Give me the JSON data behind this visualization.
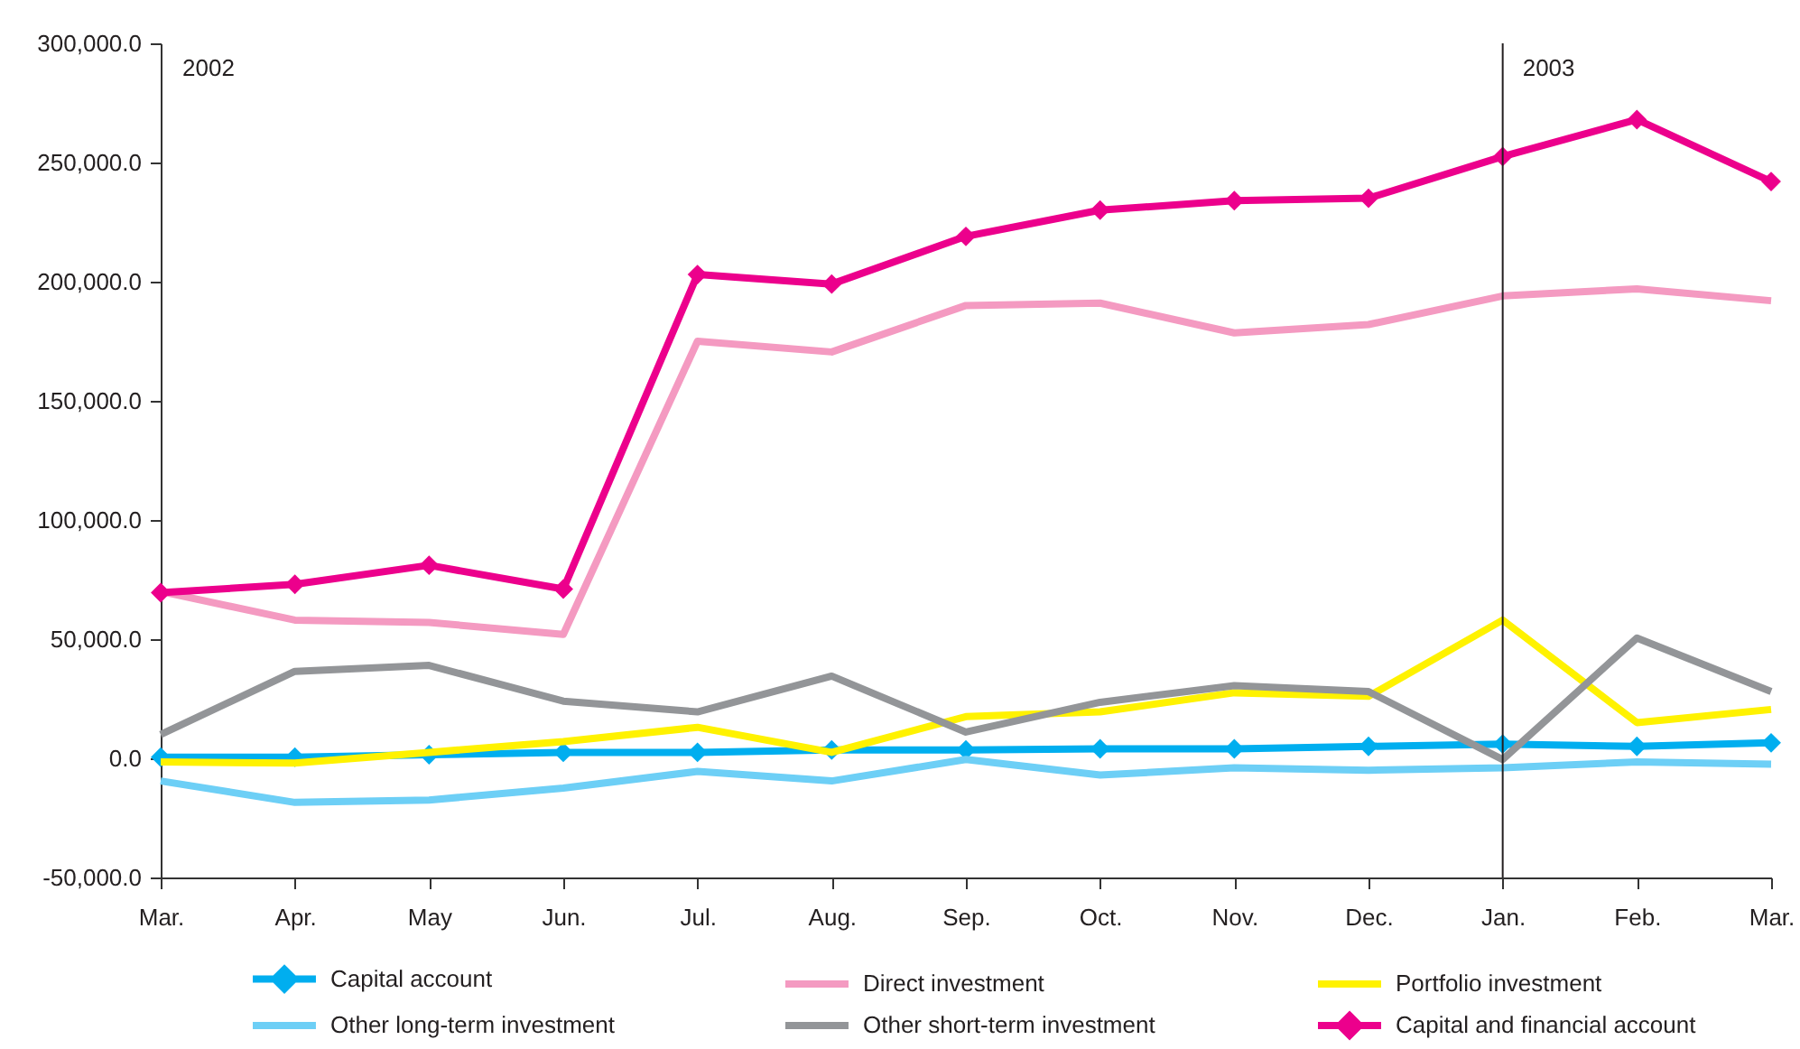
{
  "chart_data": {
    "type": "line",
    "categories": [
      "Mar.",
      "Apr.",
      "May",
      "Jun.",
      "Jul.",
      "Aug.",
      "Sep.",
      "Oct.",
      "Nov.",
      "Dec.",
      "Jan.",
      "Feb.",
      "Mar."
    ],
    "ylim": [
      -50000,
      300000
    ],
    "yticks": [
      {
        "value": -50000,
        "label": "-50,000.0"
      },
      {
        "value": 0,
        "label": "0.0"
      },
      {
        "value": 50000,
        "label": "50,000.0"
      },
      {
        "value": 100000,
        "label": "100,000.0"
      },
      {
        "value": 150000,
        "label": "150,000.0"
      },
      {
        "value": 200000,
        "label": "200,000.0"
      },
      {
        "value": 250000,
        "label": "250,000.0"
      },
      {
        "value": 300000,
        "label": "300,000.0"
      }
    ],
    "series": [
      {
        "name": "Capital account",
        "color": "#00aeef",
        "marker": "diamond",
        "values": [
          500,
          500,
          1500,
          2500,
          2500,
          3500,
          3500,
          4000,
          4000,
          5000,
          6000,
          5000,
          6500
        ]
      },
      {
        "name": "Direct investment",
        "color": "#f49ac1",
        "values": [
          70000,
          58000,
          57000,
          52000,
          175000,
          170500,
          190000,
          191000,
          178500,
          182000,
          194000,
          197000,
          192000
        ]
      },
      {
        "name": "Portfolio investment",
        "color": "#fff200",
        "values": [
          -1500,
          -2000,
          2500,
          7000,
          13000,
          2500,
          17500,
          19500,
          27500,
          26000,
          58000,
          15000,
          20500
        ]
      },
      {
        "name": "Other long-term investment",
        "color": "#6dcff6",
        "values": [
          -9500,
          -18500,
          -17500,
          -12500,
          -5500,
          -9500,
          -500,
          -7000,
          -4000,
          -5000,
          -4000,
          -1500,
          -2500
        ]
      },
      {
        "name": "Other short-term investment",
        "color": "#939598",
        "values": [
          10000,
          36500,
          39000,
          24000,
          19500,
          34500,
          11000,
          23500,
          30500,
          28000,
          -500,
          50500,
          28000
        ]
      },
      {
        "name": "Capital and financial account",
        "color": "#ec008c",
        "marker": "diamond",
        "values": [
          69500,
          73000,
          81000,
          71000,
          203000,
          199000,
          219000,
          230000,
          234000,
          235000,
          252500,
          268000,
          242000
        ]
      }
    ],
    "ref_lines": [
      {
        "axis": "x",
        "value": "Jan.",
        "label": "2003",
        "color": "#231f20"
      }
    ],
    "annotations": [
      "2002"
    ],
    "legend": "bottom"
  }
}
